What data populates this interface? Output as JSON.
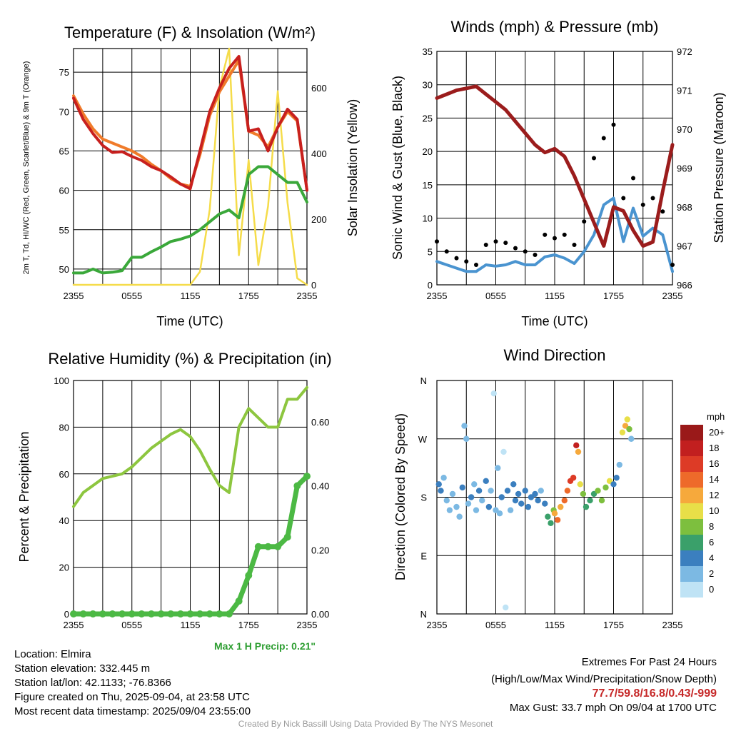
{
  "panels": {
    "temp": {
      "title": "Temperature (F) & Insolation (W/m²)",
      "ylabel_left": "2m T, Td, HI/WC (Red, Green, Scarlet/Blue) & 9m T (Orange)",
      "ylabel_right": "Solar Insolation (Yellow)",
      "xlabel": "Time (UTC)"
    },
    "wind": {
      "title": "Winds (mph) & Pressure (mb)",
      "ylabel_left": "Sonic Wind & Gust (Blue, Black)",
      "ylabel_right": "Station Pressure (Maroon)",
      "xlabel": "Time (UTC)"
    },
    "rh": {
      "title": "Relative Humidity (%) & Precipitation (in)",
      "ylabel_left": "Percent & Precipitation"
    },
    "dir": {
      "title": "Wind Direction",
      "ylabel_left": "Direction (Colored By Speed)",
      "legend_title": "mph"
    }
  },
  "info": {
    "location": "Location: Elmira",
    "elevation": "Station elevation: 332.445 m",
    "latlon": "Station lat/lon: 42.1133; -76.8366",
    "created": "Figure created on Thu, 2025-09-04, at 23:58 UTC",
    "recent": "Most recent data timestamp: 2025/09/04 23:55:00"
  },
  "extremes": {
    "title": "Extremes For Past 24 Hours",
    "subtitle": "(High/Low/Max Wind/Precipitation/Snow Depth)",
    "values": "77.7/59.8/16.8/0.43/-999",
    "gust": "Max Gust: 33.7 mph On 09/04 at 1700 UTC"
  },
  "precip_note": "Max 1 H Precip: 0.21\"",
  "footer": "Created By Nick Bassill Using Data Provided By The NYS Mesonet",
  "colors": {
    "temp": "#c8201e",
    "temp9m": "#f07b2a",
    "dewpoint": "#3aa83a",
    "solar": "#f5dc4a",
    "wind": "#4a94d0",
    "gust": "#000000",
    "pressure": "#9b1c1c",
    "rh": "#8dc63f",
    "precip": "#4cb944"
  },
  "chart_data": [
    {
      "type": "line",
      "name": "temperature",
      "x_ticks": [
        "2355",
        "0555",
        "1155",
        "1755",
        "2355"
      ],
      "x": [
        0,
        1,
        2,
        3,
        4,
        5,
        6,
        7,
        8,
        9,
        10,
        11,
        12,
        13,
        14,
        15,
        16,
        17,
        18,
        19,
        20,
        21,
        22,
        23,
        24
      ],
      "ylim": [
        48,
        78
      ],
      "yticks": [
        50,
        55,
        60,
        65,
        70,
        75
      ],
      "y2lim": [
        0,
        720
      ],
      "y2ticks": [
        0,
        200,
        400,
        600
      ],
      "series": [
        {
          "key": "temp2m",
          "values": [
            71.7,
            69,
            67.2,
            65.7,
            64.8,
            64.9,
            64.3,
            63.8,
            63,
            62.5,
            61.7,
            60.8,
            60.2,
            65,
            70,
            73,
            75.5,
            77,
            67.5,
            67.8,
            65,
            68,
            70.3,
            69,
            60
          ]
        },
        {
          "key": "temp9m",
          "values": [
            72,
            69.7,
            67.8,
            66.5,
            66,
            65.5,
            65,
            64.3,
            63.3,
            62.5,
            61.5,
            60.8,
            60.5,
            64.5,
            69.5,
            72.5,
            74.5,
            76.5,
            67.5,
            67,
            65.5,
            68,
            70,
            68.8,
            60
          ]
        },
        {
          "key": "dewpoint",
          "values": [
            49.5,
            49.5,
            50,
            49.5,
            49.6,
            49.8,
            51.5,
            51.5,
            52.2,
            52.8,
            53.5,
            53.8,
            54.2,
            55,
            56,
            57,
            57.5,
            56.5,
            62,
            63,
            63,
            62,
            61,
            61,
            58.5
          ]
        },
        {
          "key": "solar",
          "values": [
            0,
            0,
            0,
            0,
            0,
            0,
            0,
            0,
            0,
            0,
            0,
            0,
            0,
            40,
            230,
            600,
            720,
            90,
            380,
            60,
            240,
            590,
            250,
            20,
            0
          ]
        }
      ]
    },
    {
      "type": "line",
      "name": "winds_pressure",
      "x_ticks": [
        "2355",
        "0555",
        "1155",
        "1755",
        "2355"
      ],
      "x": [
        0,
        1,
        2,
        3,
        4,
        5,
        6,
        7,
        8,
        9,
        10,
        11,
        12,
        13,
        14,
        15,
        16,
        17,
        18,
        19,
        20,
        21,
        22,
        23,
        24
      ],
      "ylim": [
        0,
        35
      ],
      "yticks": [
        0,
        5,
        10,
        15,
        20,
        25,
        30,
        35
      ],
      "y2lim": [
        966,
        972
      ],
      "y2ticks": [
        966,
        967,
        968,
        969,
        970,
        971,
        972
      ],
      "series": [
        {
          "key": "wind",
          "values": [
            3.5,
            3,
            2.5,
            2,
            2,
            3,
            2.8,
            3,
            3.5,
            3,
            3,
            4.2,
            4.5,
            4,
            3.2,
            5,
            7.5,
            12,
            13,
            6.5,
            11.5,
            7.3,
            8.5,
            7.5,
            2
          ]
        },
        {
          "key": "gust",
          "values": [
            6.5,
            5,
            4,
            3.5,
            3,
            6,
            6.5,
            6.3,
            5.5,
            5,
            4.5,
            7.5,
            7,
            7.5,
            6,
            9.5,
            19,
            22,
            24,
            13,
            16,
            12,
            13,
            11,
            3
          ]
        },
        {
          "key": "pressure",
          "values": [
            970.8,
            970.9,
            971,
            971.05,
            971.1,
            970.9,
            970.7,
            970.5,
            970.2,
            969.9,
            969.6,
            969.4,
            969.5,
            969.3,
            968.8,
            968.2,
            967.6,
            967,
            968,
            967.9,
            967.4,
            967,
            967.1,
            968.4,
            969.6
          ]
        }
      ]
    },
    {
      "type": "line",
      "name": "rh_precip",
      "x_ticks": [
        "2355",
        "0555",
        "1155",
        "1755",
        "2355"
      ],
      "x": [
        0,
        1,
        2,
        3,
        4,
        5,
        6,
        7,
        8,
        9,
        10,
        11,
        12,
        13,
        14,
        15,
        16,
        17,
        18,
        19,
        20,
        21,
        22,
        23,
        24
      ],
      "ylim": [
        0,
        100
      ],
      "yticks": [
        0,
        20,
        40,
        60,
        80,
        100
      ],
      "y2lim": [
        0,
        0.7288
      ],
      "y2ticks": [
        0.0,
        0.2,
        0.4,
        0.6
      ],
      "series": [
        {
          "key": "rh",
          "values": [
            46,
            52,
            55,
            58,
            59,
            60,
            63,
            67,
            71,
            74,
            77,
            79,
            76,
            70,
            62,
            55,
            52,
            80,
            88,
            84,
            80,
            80,
            92,
            92,
            97
          ]
        },
        {
          "key": "precip",
          "values": [
            0,
            0,
            0,
            0,
            0,
            0,
            0,
            0,
            0,
            0,
            0,
            0,
            0,
            0,
            0,
            0,
            0,
            0.04,
            0.12,
            0.21,
            0.21,
            0.21,
            0.24,
            0.4,
            0.43
          ]
        }
      ]
    },
    {
      "type": "scatter",
      "name": "wind_direction",
      "x_ticks": [
        "2355",
        "0555",
        "1155",
        "1755",
        "2355"
      ],
      "y_ticks": [
        "N",
        "E",
        "S",
        "W",
        "N"
      ],
      "ylim": [
        0,
        360
      ],
      "color_scale": [
        {
          "label": "0",
          "color": "#bfe3f5"
        },
        {
          "label": "2",
          "color": "#7cb9e3"
        },
        {
          "label": "4",
          "color": "#3b7fbf"
        },
        {
          "label": "6",
          "color": "#3aa06a"
        },
        {
          "label": "8",
          "color": "#7dbf3e"
        },
        {
          "label": "10",
          "color": "#e8df48"
        },
        {
          "label": "12",
          "color": "#f6a93c"
        },
        {
          "label": "14",
          "color": "#ee6a2a"
        },
        {
          "label": "16",
          "color": "#dd3b26"
        },
        {
          "label": "18",
          "color": "#c21f1f"
        },
        {
          "label": "20+",
          "color": "#9a1919"
        }
      ],
      "points": [
        [
          0.2,
          200,
          3
        ],
        [
          0.4,
          190,
          3
        ],
        [
          0.7,
          210,
          2
        ],
        [
          1,
          175,
          2
        ],
        [
          1.3,
          160,
          1
        ],
        [
          1.6,
          185,
          2
        ],
        [
          2,
          165,
          2
        ],
        [
          2.3,
          150,
          1
        ],
        [
          2.6,
          195,
          4
        ],
        [
          2.8,
          290,
          1
        ],
        [
          3,
          270,
          1
        ],
        [
          3.2,
          170,
          2
        ],
        [
          3.5,
          180,
          3
        ],
        [
          3.8,
          200,
          2
        ],
        [
          4,
          160,
          1
        ],
        [
          4.3,
          190,
          3
        ],
        [
          4.6,
          175,
          2
        ],
        [
          5,
          205,
          3
        ],
        [
          5.3,
          165,
          4
        ],
        [
          5.5,
          190,
          2
        ],
        [
          5.8,
          340,
          0
        ],
        [
          6,
          160,
          2
        ],
        [
          6.2,
          225,
          1
        ],
        [
          6.4,
          155,
          1
        ],
        [
          6.6,
          180,
          3
        ],
        [
          6.8,
          250,
          0
        ],
        [
          7,
          10,
          0
        ],
        [
          7.2,
          190,
          3
        ],
        [
          7.5,
          160,
          2
        ],
        [
          7.8,
          200,
          4
        ],
        [
          8,
          175,
          3
        ],
        [
          8.3,
          185,
          4
        ],
        [
          8.6,
          170,
          4
        ],
        [
          9,
          190,
          4
        ],
        [
          9.3,
          165,
          4
        ],
        [
          9.6,
          180,
          3
        ],
        [
          10,
          185,
          4
        ],
        [
          10.3,
          175,
          3
        ],
        [
          10.6,
          190,
          2
        ],
        [
          11,
          170,
          4
        ],
        [
          11.3,
          150,
          6
        ],
        [
          11.6,
          140,
          5
        ],
        [
          11.9,
          160,
          7
        ],
        [
          12,
          155,
          12
        ],
        [
          12.3,
          145,
          13
        ],
        [
          12.6,
          165,
          11
        ],
        [
          13,
          175,
          14
        ],
        [
          13.3,
          190,
          13
        ],
        [
          13.6,
          205,
          16
        ],
        [
          13.9,
          210,
          15
        ],
        [
          14.2,
          260,
          18
        ],
        [
          14.4,
          250,
          11
        ],
        [
          14.6,
          200,
          9
        ],
        [
          14.9,
          185,
          7
        ],
        [
          15.2,
          165,
          6
        ],
        [
          15.6,
          175,
          5
        ],
        [
          16,
          185,
          6
        ],
        [
          16.4,
          190,
          8
        ],
        [
          16.8,
          175,
          7
        ],
        [
          17.2,
          195,
          8
        ],
        [
          17.6,
          205,
          9
        ],
        [
          18,
          200,
          4
        ],
        [
          18.3,
          210,
          3
        ],
        [
          18.6,
          230,
          2
        ],
        [
          18.9,
          280,
          10
        ],
        [
          19.2,
          290,
          11
        ],
        [
          19.4,
          300,
          9
        ],
        [
          19.6,
          285,
          7
        ],
        [
          19.8,
          270,
          2
        ]
      ]
    }
  ]
}
